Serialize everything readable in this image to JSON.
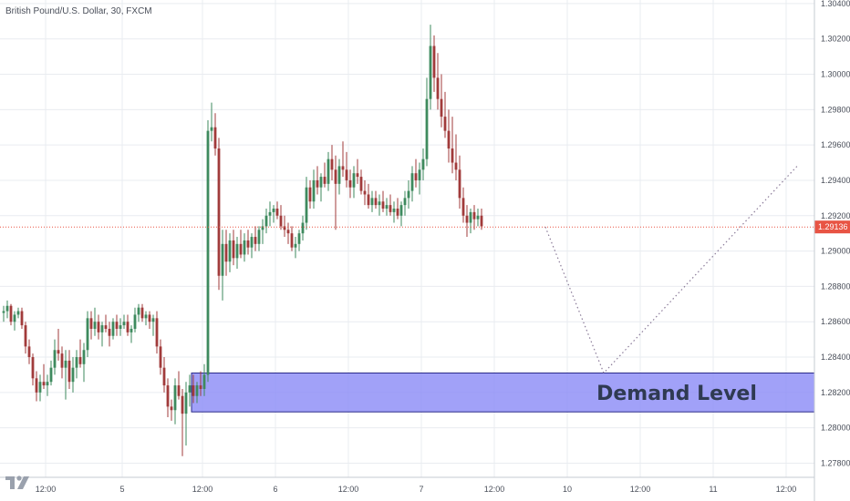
{
  "symbol_title": "British Pound/U.S. Dollar, 30, FXCM",
  "zone_label": "Demand Level",
  "last_price_label": "1.29136",
  "colors": {
    "up": "#3e8a5e",
    "down": "#a13b3b",
    "zone_fill": "#8c8cf7",
    "zone_border": "#2a2a8a",
    "price_line": "#e85444",
    "projection": "#8a7a98",
    "grid": "#e9ecf0"
  },
  "chart_data": {
    "type": "candlestick",
    "title": "British Pound/U.S. Dollar, 30, FXCM",
    "y_axis": {
      "position": "right",
      "range": [
        1.2772,
        1.3042
      ],
      "ticks": [
        "1.30400",
        "1.30200",
        "1.30000",
        "1.29800",
        "1.29600",
        "1.29400",
        "1.29200",
        "1.29000",
        "1.28800",
        "1.28600",
        "1.28400",
        "1.28200",
        "1.28000",
        "1.27800"
      ]
    },
    "x_axis": {
      "ticks": [
        {
          "label": "12:00",
          "bar": 12
        },
        {
          "label": "5",
          "bar": 33
        },
        {
          "label": "12:00",
          "bar": 55
        },
        {
          "label": "6",
          "bar": 75
        },
        {
          "label": "12:00",
          "bar": 95
        },
        {
          "label": "7",
          "bar": 115
        },
        {
          "label": "12:00",
          "bar": 135
        },
        {
          "label": "10",
          "bar": 155
        },
        {
          "label": "12:00",
          "bar": 175
        },
        {
          "label": "11",
          "bar": 195
        },
        {
          "label": "12:00",
          "bar": 215
        }
      ]
    },
    "bars": 228,
    "grid": true,
    "last_price": 1.29136,
    "demand_zone": {
      "label": "Demand Level",
      "from_bar": 52,
      "to_bar": 228,
      "low": 1.2809,
      "high": 1.2831
    },
    "projection": [
      {
        "bar": 149,
        "price": 1.29136
      },
      {
        "bar": 165,
        "price": 1.2831
      },
      {
        "bar": 218,
        "price": 1.2948
      }
    ],
    "candles": [
      [
        1.2865,
        1.2869,
        1.286,
        1.2866
      ],
      [
        1.2866,
        1.2872,
        1.2862,
        1.2869
      ],
      [
        1.2869,
        1.287,
        1.2858,
        1.286
      ],
      [
        1.286,
        1.2866,
        1.2855,
        1.2864
      ],
      [
        1.2864,
        1.2868,
        1.2862,
        1.2866
      ],
      [
        1.2866,
        1.2868,
        1.2856,
        1.2858
      ],
      [
        1.2858,
        1.286,
        1.2842,
        1.2846
      ],
      [
        1.2846,
        1.285,
        1.2836,
        1.284
      ],
      [
        1.284,
        1.2842,
        1.2824,
        1.2828
      ],
      [
        1.2828,
        1.2832,
        1.2815,
        1.282
      ],
      [
        1.282,
        1.283,
        1.2815,
        1.2826
      ],
      [
        1.2826,
        1.2836,
        1.2822,
        1.2824
      ],
      [
        1.2824,
        1.283,
        1.2818,
        1.2826
      ],
      [
        1.2826,
        1.2838,
        1.2824,
        1.2834
      ],
      [
        1.2834,
        1.285,
        1.283,
        1.2844
      ],
      [
        1.2844,
        1.2856,
        1.2838,
        1.2842
      ],
      [
        1.2842,
        1.2846,
        1.2828,
        1.2834
      ],
      [
        1.2834,
        1.2844,
        1.2816,
        1.2838
      ],
      [
        1.2838,
        1.2844,
        1.2822,
        1.2826
      ],
      [
        1.2826,
        1.284,
        1.282,
        1.2834
      ],
      [
        1.2834,
        1.2844,
        1.2828,
        1.284
      ],
      [
        1.284,
        1.285,
        1.2834,
        1.2836
      ],
      [
        1.2836,
        1.2848,
        1.2826,
        1.2844
      ],
      [
        1.2844,
        1.2866,
        1.284,
        1.2862
      ],
      [
        1.2862,
        1.2866,
        1.285,
        1.2856
      ],
      [
        1.2856,
        1.2868,
        1.2852,
        1.286
      ],
      [
        1.286,
        1.2864,
        1.285,
        1.2854
      ],
      [
        1.2854,
        1.286,
        1.2846,
        1.2858
      ],
      [
        1.2858,
        1.2864,
        1.2854,
        1.2856
      ],
      [
        1.2856,
        1.286,
        1.2846,
        1.2852
      ],
      [
        1.2852,
        1.2862,
        1.285,
        1.286
      ],
      [
        1.286,
        1.2864,
        1.2852,
        1.2856
      ],
      [
        1.2856,
        1.2862,
        1.2852,
        1.2858
      ],
      [
        1.2858,
        1.2864,
        1.2856,
        1.286
      ],
      [
        1.286,
        1.2864,
        1.2852,
        1.2854
      ],
      [
        1.2854,
        1.2858,
        1.2848,
        1.2856
      ],
      [
        1.2856,
        1.2868,
        1.2854,
        1.2864
      ],
      [
        1.2864,
        1.287,
        1.286,
        1.2868
      ],
      [
        1.2868,
        1.287,
        1.286,
        1.2862
      ],
      [
        1.2862,
        1.2866,
        1.2858,
        1.2864
      ],
      [
        1.2864,
        1.2866,
        1.2856,
        1.286
      ],
      [
        1.286,
        1.2864,
        1.2852,
        1.2862
      ],
      [
        1.2862,
        1.2866,
        1.2842,
        1.2846
      ],
      [
        1.2846,
        1.285,
        1.283,
        1.2834
      ],
      [
        1.2834,
        1.284,
        1.282,
        1.2824
      ],
      [
        1.2824,
        1.2828,
        1.2806,
        1.2812
      ],
      [
        1.2812,
        1.2816,
        1.2804,
        1.281
      ],
      [
        1.281,
        1.2828,
        1.2802,
        1.2824
      ],
      [
        1.2824,
        1.2832,
        1.2816,
        1.2818
      ],
      [
        1.2818,
        1.2822,
        1.2784,
        1.2808
      ],
      [
        1.2808,
        1.2826,
        1.279,
        1.282
      ],
      [
        1.282,
        1.283,
        1.2812,
        1.2824
      ],
      [
        1.2824,
        1.283,
        1.2814,
        1.2818
      ],
      [
        1.2818,
        1.2826,
        1.2814,
        1.2824
      ],
      [
        1.2824,
        1.2832,
        1.2818,
        1.2822
      ],
      [
        1.2822,
        1.2836,
        1.2818,
        1.283
      ],
      [
        1.283,
        1.2974,
        1.2826,
        1.2968
      ],
      [
        1.2968,
        1.2984,
        1.2962,
        1.297
      ],
      [
        1.297,
        1.2978,
        1.2954,
        1.2958
      ],
      [
        1.2958,
        1.2964,
        1.2878,
        1.2886
      ],
      [
        1.2886,
        1.2912,
        1.2872,
        1.2904
      ],
      [
        1.2904,
        1.2912,
        1.2886,
        1.2894
      ],
      [
        1.2894,
        1.291,
        1.2888,
        1.2906
      ],
      [
        1.2906,
        1.2912,
        1.2892,
        1.2896
      ],
      [
        1.2896,
        1.2908,
        1.289,
        1.2904
      ],
      [
        1.2904,
        1.2912,
        1.2896,
        1.2898
      ],
      [
        1.2898,
        1.291,
        1.2894,
        1.2906
      ],
      [
        1.2906,
        1.2912,
        1.2898,
        1.2902
      ],
      [
        1.2902,
        1.291,
        1.2896,
        1.2908
      ],
      [
        1.2908,
        1.2914,
        1.29,
        1.2904
      ],
      [
        1.2904,
        1.2914,
        1.29,
        1.2912
      ],
      [
        1.2912,
        1.2918,
        1.2904,
        1.2914
      ],
      [
        1.2914,
        1.2924,
        1.291,
        1.292
      ],
      [
        1.292,
        1.2928,
        1.2914,
        1.2922
      ],
      [
        1.2922,
        1.2926,
        1.2916,
        1.2924
      ],
      [
        1.2924,
        1.2928,
        1.2918,
        1.292
      ],
      [
        1.292,
        1.2926,
        1.2912,
        1.2914
      ],
      [
        1.2914,
        1.292,
        1.2908,
        1.2912
      ],
      [
        1.2912,
        1.2916,
        1.2904,
        1.291
      ],
      [
        1.291,
        1.2914,
        1.29,
        1.2902
      ],
      [
        1.2902,
        1.2908,
        1.2896,
        1.2904
      ],
      [
        1.2904,
        1.2912,
        1.29,
        1.291
      ],
      [
        1.291,
        1.292,
        1.2906,
        1.2916
      ],
      [
        1.2916,
        1.2942,
        1.2912,
        1.2936
      ],
      [
        1.2936,
        1.294,
        1.2924,
        1.2928
      ],
      [
        1.2928,
        1.2946,
        1.2924,
        1.294
      ],
      [
        1.294,
        1.2948,
        1.2932,
        1.2936
      ],
      [
        1.2936,
        1.2944,
        1.2928,
        1.2942
      ],
      [
        1.2942,
        1.295,
        1.2936,
        1.2938
      ],
      [
        1.2938,
        1.2956,
        1.2934,
        1.2952
      ],
      [
        1.2952,
        1.296,
        1.294,
        1.2946
      ],
      [
        1.2946,
        1.2954,
        1.2912,
        1.2938
      ],
      [
        1.2938,
        1.2952,
        1.2932,
        1.2948
      ],
      [
        1.2948,
        1.2962,
        1.2942,
        1.2946
      ],
      [
        1.2946,
        1.2956,
        1.2936,
        1.294
      ],
      [
        1.294,
        1.2946,
        1.293,
        1.2936
      ],
      [
        1.2936,
        1.2948,
        1.293,
        1.2944
      ],
      [
        1.2944,
        1.2952,
        1.2938,
        1.2942
      ],
      [
        1.2942,
        1.2946,
        1.2932,
        1.2934
      ],
      [
        1.2934,
        1.294,
        1.2926,
        1.2932
      ],
      [
        1.2932,
        1.2938,
        1.2924,
        1.2926
      ],
      [
        1.2926,
        1.2934,
        1.2922,
        1.293
      ],
      [
        1.293,
        1.2934,
        1.2924,
        1.2926
      ],
      [
        1.2926,
        1.2932,
        1.292,
        1.2928
      ],
      [
        1.2928,
        1.2934,
        1.2922,
        1.2924
      ],
      [
        1.2924,
        1.293,
        1.292,
        1.2926
      ],
      [
        1.2926,
        1.2932,
        1.292,
        1.2922
      ],
      [
        1.2922,
        1.2928,
        1.2916,
        1.2924
      ],
      [
        1.2924,
        1.293,
        1.2918,
        1.292
      ],
      [
        1.292,
        1.2928,
        1.2914,
        1.2926
      ],
      [
        1.2926,
        1.2934,
        1.292,
        1.293
      ],
      [
        1.293,
        1.294,
        1.2924,
        1.2934
      ],
      [
        1.2934,
        1.2948,
        1.2928,
        1.2944
      ],
      [
        1.2944,
        1.2952,
        1.2936,
        1.294
      ],
      [
        1.294,
        1.295,
        1.2932,
        1.2946
      ],
      [
        1.2946,
        1.2958,
        1.294,
        1.2952
      ],
      [
        1.2952,
        1.2998,
        1.2948,
        1.2986
      ],
      [
        1.2986,
        1.3028,
        1.298,
        1.3016
      ],
      [
        1.3016,
        1.3022,
        1.299,
        1.2998
      ],
      [
        1.2998,
        1.3012,
        1.298,
        1.2986
      ],
      [
        1.2986,
        1.3,
        1.297,
        1.2976
      ],
      [
        1.2976,
        1.299,
        1.2964,
        1.2968
      ],
      [
        1.2968,
        1.298,
        1.295,
        1.2958
      ],
      [
        1.2958,
        1.2976,
        1.2944,
        1.295
      ],
      [
        1.295,
        1.2966,
        1.294,
        1.2946
      ],
      [
        1.2946,
        1.2954,
        1.2924,
        1.293
      ],
      [
        1.293,
        1.2936,
        1.2916,
        1.292
      ],
      [
        1.292,
        1.2926,
        1.2908,
        1.2916
      ],
      [
        1.2916,
        1.2924,
        1.291,
        1.2922
      ],
      [
        1.2922,
        1.2926,
        1.2912,
        1.2918
      ],
      [
        1.2918,
        1.2924,
        1.2914,
        1.292
      ],
      [
        1.292,
        1.2924,
        1.2912,
        1.2914
      ]
    ]
  }
}
